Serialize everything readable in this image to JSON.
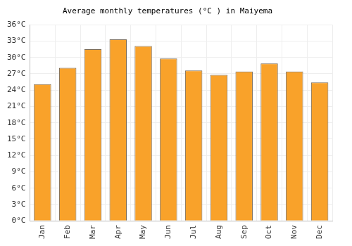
{
  "chart_data": {
    "type": "bar",
    "title": "Average monthly temperatures (°C ) in Maiyema",
    "categories": [
      "Jan",
      "Feb",
      "Mar",
      "Apr",
      "May",
      "Jun",
      "Jul",
      "Aug",
      "Sep",
      "Oct",
      "Nov",
      "Dec"
    ],
    "values": [
      25.1,
      28.1,
      31.5,
      33.3,
      32.1,
      29.8,
      27.6,
      26.8,
      27.4,
      28.9,
      27.4,
      25.4
    ],
    "color": "#f9a22a",
    "ylim": [
      0,
      36
    ],
    "yticks": [
      {
        "value": 0,
        "label": "0°C"
      },
      {
        "value": 3,
        "label": "3°C"
      },
      {
        "value": 6,
        "label": "6°C"
      },
      {
        "value": 9,
        "label": "9°C"
      },
      {
        "value": 12,
        "label": "12°C"
      },
      {
        "value": 15,
        "label": "15°C"
      },
      {
        "value": 18,
        "label": "18°C"
      },
      {
        "value": 21,
        "label": "21°C"
      },
      {
        "value": 24,
        "label": "24°C"
      },
      {
        "value": 27,
        "label": "27°C"
      },
      {
        "value": 30,
        "label": "30°C"
      },
      {
        "value": 33,
        "label": "33°C"
      },
      {
        "value": 36,
        "label": "36°C"
      }
    ],
    "grid": true
  }
}
